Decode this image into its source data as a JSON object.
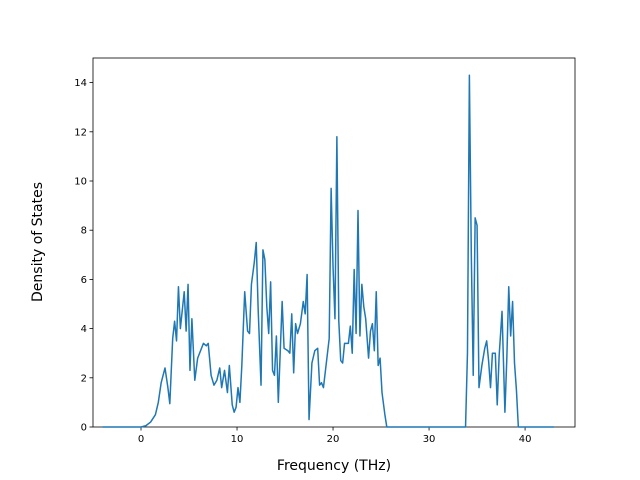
{
  "chart_data": {
    "type": "line",
    "x_label": "Frequency (THz)",
    "y_label": "Density of States",
    "xlim": [
      -5,
      45.2
    ],
    "ylim": [
      0,
      15
    ],
    "xticks": [
      0,
      10,
      20,
      30,
      40
    ],
    "yticks": [
      0,
      2,
      4,
      6,
      8,
      10,
      12,
      14
    ],
    "series": [
      {
        "color": "#1f77b4",
        "x": [
          -4,
          0,
          0.5,
          1,
          1.5,
          1.8,
          2.1,
          2.5,
          2.8,
          3.0,
          3.3,
          3.5,
          3.7,
          3.9,
          4.1,
          4.5,
          4.7,
          4.9,
          5.1,
          5.3,
          5.6,
          5.9,
          6.2,
          6.5,
          6.8,
          7.0,
          7.3,
          7.6,
          7.9,
          8.2,
          8.4,
          8.7,
          9.0,
          9.2,
          9.5,
          9.7,
          9.9,
          10.1,
          10.3,
          10.5,
          10.8,
          11.1,
          11.3,
          11.5,
          11.8,
          12.0,
          12.2,
          12.5,
          12.7,
          12.9,
          13.1,
          13.3,
          13.5,
          13.7,
          13.9,
          14.1,
          14.3,
          14.7,
          14.9,
          15.3,
          15.5,
          15.7,
          15.9,
          16.1,
          16.3,
          16.6,
          16.9,
          17.1,
          17.3,
          17.5,
          17.8,
          18.1,
          18.4,
          18.6,
          18.8,
          19.0,
          19.3,
          19.6,
          19.8,
          20.0,
          20.2,
          20.4,
          20.6,
          20.8,
          21.0,
          21.2,
          21.6,
          21.8,
          22.0,
          22.2,
          22.4,
          22.6,
          22.8,
          23.0,
          23.2,
          23.4,
          23.7,
          23.9,
          24.1,
          24.3,
          24.5,
          24.7,
          24.9,
          25.1,
          25.4,
          25.6,
          33.8,
          34.0,
          34.2,
          34.4,
          34.6,
          34.8,
          35.0,
          35.2,
          35.5,
          35.8,
          36.0,
          36.2,
          36.4,
          36.6,
          36.9,
          37.1,
          37.3,
          37.6,
          37.9,
          38.1,
          38.3,
          38.5,
          38.7,
          38.9,
          39.1,
          39.3,
          43
        ],
        "values": [
          0,
          0,
          0.05,
          0.2,
          0.5,
          1.0,
          1.8,
          2.4,
          1.6,
          0.95,
          3.6,
          4.3,
          3.5,
          5.7,
          4.0,
          5.5,
          3.9,
          5.8,
          2.3,
          4.4,
          1.9,
          2.8,
          3.1,
          3.4,
          3.3,
          3.4,
          2.1,
          1.7,
          1.9,
          2.4,
          1.6,
          2.3,
          1.4,
          2.5,
          0.9,
          0.6,
          0.8,
          1.6,
          1.0,
          2.5,
          5.5,
          3.9,
          3.8,
          5.8,
          6.7,
          7.5,
          4.8,
          1.7,
          7.2,
          6.8,
          4.9,
          3.8,
          5.9,
          2.3,
          2.1,
          3.7,
          1.0,
          5.1,
          3.2,
          3.1,
          3.0,
          4.6,
          2.2,
          4.2,
          3.8,
          4.2,
          5.1,
          4.6,
          6.2,
          0.3,
          2.6,
          3.1,
          3.2,
          1.7,
          1.8,
          1.6,
          2.6,
          3.6,
          9.7,
          6.5,
          4.4,
          11.8,
          4.3,
          2.7,
          2.6,
          3.4,
          3.4,
          4.1,
          3.0,
          6.4,
          3.8,
          8.8,
          3.7,
          5.8,
          4.9,
          4.4,
          2.8,
          3.9,
          4.2,
          3.1,
          5.5,
          2.5,
          2.8,
          1.4,
          0.5,
          0,
          0,
          3.0,
          14.3,
          7.0,
          2.1,
          8.5,
          8.2,
          1.6,
          2.5,
          3.2,
          3.5,
          2.7,
          1.6,
          3.0,
          3.0,
          0.9,
          2.9,
          4.7,
          0.6,
          2.8,
          5.7,
          3.7,
          5.1,
          2.6,
          1.5,
          0,
          0
        ]
      }
    ]
  }
}
